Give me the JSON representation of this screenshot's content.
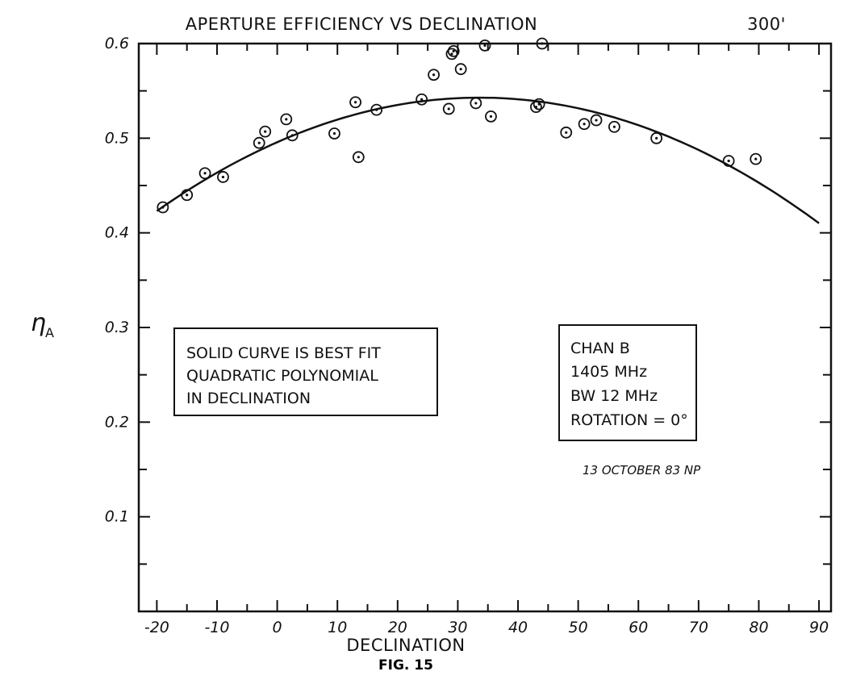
{
  "chart_data": {
    "type": "scatter",
    "title": "APERTURE EFFICIENCY VS DECLINATION",
    "corner_label": "300'",
    "xlabel": "DECLINATION",
    "ylabel_main": "η",
    "ylabel_sub": "A",
    "figure_label": "FIG. 15",
    "xlim": [
      -23,
      92
    ],
    "ylim": [
      0.0,
      0.6
    ],
    "x_ticks": [
      -20,
      -10,
      0,
      10,
      20,
      30,
      40,
      50,
      60,
      70,
      80,
      90
    ],
    "x_tick_labels": [
      "-20",
      "-10",
      "0",
      "10",
      "20",
      "30",
      "40",
      "50",
      "60",
      "70",
      "80",
      "90"
    ],
    "y_ticks": [
      0.1,
      0.2,
      0.3,
      0.4,
      0.5,
      0.6
    ],
    "y_tick_labels": [
      "0.1",
      "0.2",
      "0.3",
      "0.4",
      "0.5",
      "0.6"
    ],
    "grid": false,
    "series": [
      {
        "marker": "circled-dot",
        "x": [
          -19,
          -15,
          -12,
          -9,
          -3,
          -2,
          1.5,
          2.5,
          9.5,
          13,
          13.5,
          16.5,
          24,
          28.5,
          29,
          26,
          30.5,
          29.3,
          33,
          34.5,
          35.5,
          43,
          43.5,
          44,
          48,
          51,
          53,
          56,
          63,
          75,
          79.5
        ],
        "y": [
          0.427,
          0.44,
          0.463,
          0.459,
          0.495,
          0.507,
          0.52,
          0.503,
          0.505,
          0.538,
          0.48,
          0.53,
          0.541,
          0.531,
          0.589,
          0.567,
          0.573,
          0.592,
          0.537,
          0.598,
          0.523,
          0.533,
          0.536,
          0.6,
          0.506,
          0.515,
          0.519,
          0.512,
          0.5,
          0.476,
          0.478
        ]
      }
    ],
    "fit_curve": {
      "kind": "quadratic",
      "x_range": [
        -20,
        90
      ],
      "points": [
        [
          -20,
          0.421
        ],
        [
          0,
          0.497
        ],
        [
          20,
          0.536
        ],
        [
          33,
          0.546
        ],
        [
          40,
          0.543
        ],
        [
          50,
          0.533
        ],
        [
          60,
          0.51
        ],
        [
          70,
          0.48
        ],
        [
          80,
          0.452
        ],
        [
          90,
          0.416
        ]
      ]
    },
    "annotations": {
      "fit_box_lines": [
        "SOLID CURVE IS BEST FIT",
        "QUADRATIC POLYNOMIAL",
        "IN DECLINATION"
      ],
      "info_box_lines": [
        "CHAN B",
        "1405 MHz",
        "BW 12 MHz",
        "ROTATION = 0°"
      ],
      "date_note": "13 OCTOBER 83 NP"
    }
  }
}
